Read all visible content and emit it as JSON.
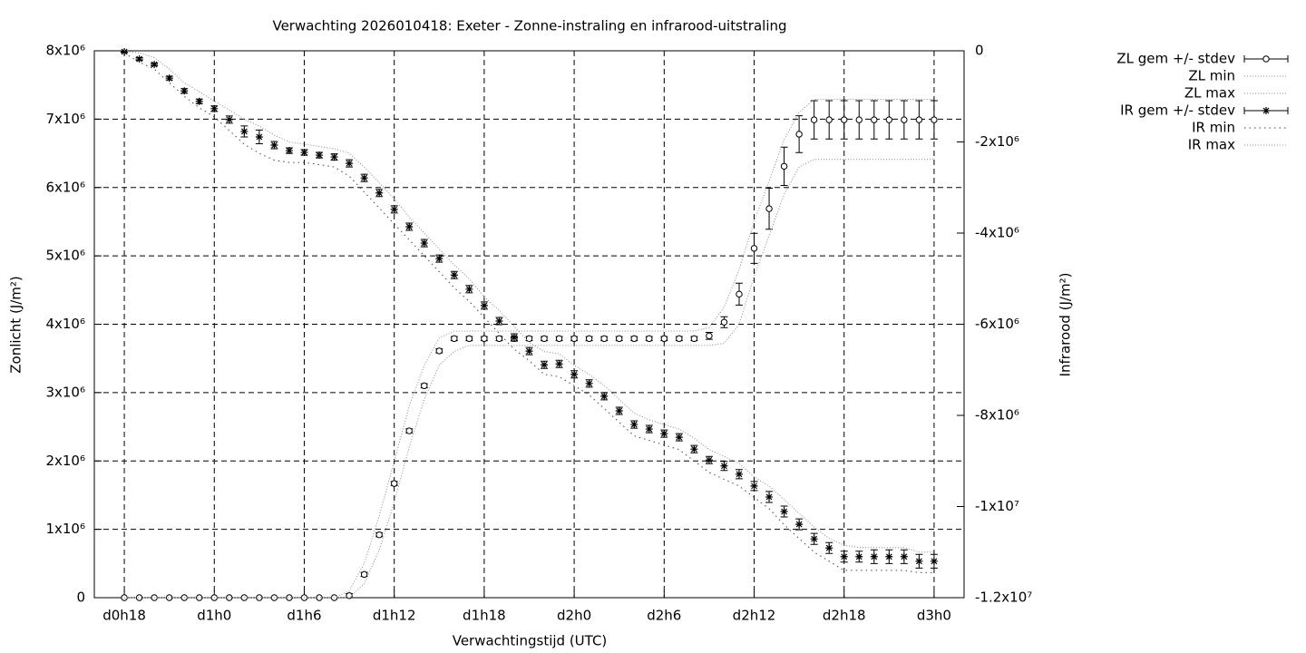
{
  "chart_data": {
    "type": "errorbar",
    "title": "Verwachting 2026010418: Exeter - Zonne-instraling en infrarood-uitstraling",
    "x_label": "Verwachtingstijd (UTC)",
    "y_label": "Zonlicht (J/m²)",
    "y2_label": "Infrarood (J/m²)",
    "grid": true,
    "legend": "outside-top-right",
    "xlim": [
      16,
      74
    ],
    "xticks": [
      {
        "value": 18,
        "label": "d0h18"
      },
      {
        "value": 24,
        "label": "d1h0"
      },
      {
        "value": 30,
        "label": "d1h6"
      },
      {
        "value": 36,
        "label": "d1h12"
      },
      {
        "value": 42,
        "label": "d1h18"
      },
      {
        "value": 48,
        "label": "d2h0"
      },
      {
        "value": 54,
        "label": "d2h6"
      },
      {
        "value": 60,
        "label": "d2h12"
      },
      {
        "value": 66,
        "label": "d2h18"
      },
      {
        "value": 72,
        "label": "d3h0"
      }
    ],
    "ylim": [
      0,
      8000000.0
    ],
    "yticks": [
      0,
      {
        "value": 1000000.0,
        "label": "1x10⁶"
      },
      {
        "value": 2000000.0,
        "label": "2x10⁶"
      },
      {
        "value": 3000000.0,
        "label": "3x10⁶"
      },
      {
        "value": 4000000.0,
        "label": "4x10⁶"
      },
      {
        "value": 5000000.0,
        "label": "5x10⁶"
      },
      {
        "value": 6000000.0,
        "label": "6x10⁶"
      },
      {
        "value": 7000000.0,
        "label": "7x10⁶"
      },
      {
        "value": 8000000.0,
        "label": "8x10⁶"
      }
    ],
    "y2lim": [
      -12000000.0,
      0
    ],
    "y2ticks": [
      0,
      {
        "value": -2000000.0,
        "label": "-2x10⁶"
      },
      {
        "value": -4000000.0,
        "label": "-4x10⁶"
      },
      {
        "value": -6000000.0,
        "label": "-6x10⁶"
      },
      {
        "value": -8000000.0,
        "label": "-8x10⁶"
      },
      {
        "value": -10000000.0,
        "label": "-1x10⁷"
      },
      {
        "value": -12000000.0,
        "label": "-1.2x10⁷"
      }
    ],
    "x": [
      18,
      19,
      20,
      21,
      22,
      23,
      24,
      25,
      26,
      27,
      28,
      29,
      30,
      31,
      32,
      33,
      34,
      35,
      36,
      37,
      38,
      39,
      40,
      41,
      42,
      43,
      44,
      45,
      46,
      47,
      48,
      49,
      50,
      51,
      52,
      53,
      54,
      55,
      56,
      57,
      58,
      59,
      60,
      61,
      62,
      63,
      64,
      65,
      66,
      67,
      68,
      69,
      70,
      71,
      72
    ],
    "series": [
      {
        "name": "ZL gem +/- stdev",
        "color": "#000000",
        "style": "errorbar-circle",
        "values": [
          0,
          0,
          0,
          0,
          0,
          0,
          0,
          0,
          0,
          0,
          0,
          0,
          0,
          0,
          0,
          30000.0,
          340000.0,
          920000.0,
          1670000.0,
          2440000.0,
          3100000.0,
          3610000.0,
          3790000.0,
          3790000.0,
          3790000.0,
          3790000.0,
          3790000.0,
          3790000.0,
          3790000.0,
          3790000.0,
          3790000.0,
          3790000.0,
          3790000.0,
          3790000.0,
          3790000.0,
          3790000.0,
          3790000.0,
          3790000.0,
          3790000.0,
          3830000.0,
          4030000.0,
          4440000.0,
          5110000.0,
          5690000.0,
          6310000.0,
          6780000.0,
          6990000.0,
          6990000.0,
          6990000.0,
          6990000.0,
          6990000.0,
          6990000.0,
          6990000.0,
          6990000.0,
          6990000.0
        ],
        "errors": [
          0,
          0,
          0,
          0,
          0,
          0,
          0,
          0,
          0,
          0,
          0,
          0,
          0,
          0,
          0,
          30000.0,
          30000.0,
          30000.0,
          30000.0,
          30000.0,
          30000.0,
          30000.0,
          30000.0,
          30000.0,
          30000.0,
          30000.0,
          30000.0,
          30000.0,
          30000.0,
          30000.0,
          30000.0,
          30000.0,
          30000.0,
          30000.0,
          30000.0,
          30000.0,
          30000.0,
          30000.0,
          30000.0,
          50000.0,
          80000.0,
          160000.0,
          220000.0,
          300000.0,
          280000.0,
          270000.0,
          280000.0,
          280000.0,
          280000.0,
          280000.0,
          280000.0,
          280000.0,
          280000.0,
          280000.0,
          280000.0
        ]
      },
      {
        "name": "ZL min",
        "color": "#888888",
        "style": "dotted",
        "values": [
          0,
          0,
          0,
          0,
          0,
          0,
          0,
          0,
          0,
          0,
          0,
          0,
          0,
          0,
          0,
          0,
          200000.0,
          700000.0,
          1400000.0,
          2200000.0,
          2900000.0,
          3400000.0,
          3600000.0,
          3690000.0,
          3690000.0,
          3690000.0,
          3690000.0,
          3690000.0,
          3690000.0,
          3690000.0,
          3690000.0,
          3690000.0,
          3690000.0,
          3690000.0,
          3690000.0,
          3690000.0,
          3690000.0,
          3690000.0,
          3690000.0,
          3690000.0,
          3720000.0,
          4000000.0,
          4700000.0,
          5300000.0,
          5900000.0,
          6300000.0,
          6410000.0,
          6410000.0,
          6410000.0,
          6410000.0,
          6410000.0,
          6410000.0,
          6410000.0,
          6410000.0,
          6410000.0
        ]
      },
      {
        "name": "ZL max",
        "color": "#888888",
        "style": "dotted",
        "values": [
          0,
          0,
          0,
          0,
          0,
          0,
          0,
          0,
          0,
          0,
          0,
          0,
          0,
          0,
          0,
          100000.0,
          500000.0,
          1200000.0,
          2000000.0,
          2800000.0,
          3400000.0,
          3800000.0,
          3900000.0,
          3900000.0,
          3900000.0,
          3900000.0,
          3900000.0,
          3900000.0,
          3900000.0,
          3900000.0,
          3900000.0,
          3900000.0,
          3900000.0,
          3900000.0,
          3900000.0,
          3900000.0,
          3900000.0,
          3900000.0,
          3900000.0,
          3950000.0,
          4250000.0,
          4800000.0,
          5500000.0,
          6100000.0,
          6700000.0,
          7100000.0,
          7290000.0,
          7290000.0,
          7290000.0,
          7290000.0,
          7290000.0,
          7290000.0,
          7290000.0,
          7290000.0,
          7290000.0
        ]
      },
      {
        "name": "IR gem +/- stdev",
        "color": "#000000",
        "style": "errorbar-star",
        "axis": "y2",
        "values": [
          -20000.0,
          -180000.0,
          -300000.0,
          -600000.0,
          -880000.0,
          -1110000.0,
          -1270000.0,
          -1510000.0,
          -1770000.0,
          -1890000.0,
          -2070000.0,
          -2190000.0,
          -2230000.0,
          -2290000.0,
          -2330000.0,
          -2470000.0,
          -2790000.0,
          -3120000.0,
          -3480000.0,
          -3860000.0,
          -4220000.0,
          -4560000.0,
          -4920000.0,
          -5230000.0,
          -5590000.0,
          -5930000.0,
          -6290000.0,
          -6590000.0,
          -6890000.0,
          -6870000.0,
          -7100000.0,
          -7300000.0,
          -7580000.0,
          -7900000.0,
          -8200000.0,
          -8300000.0,
          -8400000.0,
          -8480000.0,
          -8740000.0,
          -8980000.0,
          -9110000.0,
          -9290000.0,
          -9550000.0,
          -9790000.0,
          -10110000.0,
          -10390000.0,
          -10710000.0,
          -10910000.0,
          -11100000.0,
          -11100000.0,
          -11100000.0,
          -11100000.0,
          -11100000.0,
          -11200000.0,
          -11200000.0
        ],
        "errors": [
          20000.0,
          30000.0,
          30000.0,
          40000.0,
          50000.0,
          50000.0,
          60000.0,
          80000.0,
          120000.0,
          150000.0,
          80000.0,
          60000.0,
          60000.0,
          60000.0,
          70000.0,
          80000.0,
          80000.0,
          80000.0,
          80000.0,
          80000.0,
          80000.0,
          80000.0,
          80000.0,
          80000.0,
          80000.0,
          80000.0,
          80000.0,
          80000.0,
          80000.0,
          80000.0,
          80000.0,
          80000.0,
          80000.0,
          80000.0,
          80000.0,
          80000.0,
          80000.0,
          80000.0,
          80000.0,
          80000.0,
          100000.0,
          100000.0,
          100000.0,
          120000.0,
          120000.0,
          120000.0,
          120000.0,
          120000.0,
          120000.0,
          120000.0,
          150000.0,
          150000.0,
          150000.0,
          150000.0,
          150000.0
        ]
      },
      {
        "name": "IR min",
        "color": "#444444",
        "style": "dotted",
        "axis": "y2",
        "values": [
          -50000.0,
          -250000.0,
          -400000.0,
          -700000.0,
          -1000000.0,
          -1250000.0,
          -1450000.0,
          -1750000.0,
          -2050000.0,
          -2250000.0,
          -2400000.0,
          -2450000.0,
          -2450000.0,
          -2500000.0,
          -2550000.0,
          -2750000.0,
          -3100000.0,
          -3450000.0,
          -3800000.0,
          -4150000.0,
          -4500000.0,
          -4850000.0,
          -5200000.0,
          -5500000.0,
          -5850000.0,
          -6200000.0,
          -6550000.0,
          -6800000.0,
          -7100000.0,
          -7150000.0,
          -7350000.0,
          -7550000.0,
          -7850000.0,
          -8150000.0,
          -8450000.0,
          -8550000.0,
          -8650000.0,
          -8750000.0,
          -9000000.0,
          -9250000.0,
          -9400000.0,
          -9550000.0,
          -9800000.0,
          -10050000.0,
          -10400000.0,
          -10700000.0,
          -11000000.0,
          -11200000.0,
          -11400000.0,
          -11400000.0,
          -11400000.0,
          -11400000.0,
          -11400000.0,
          -11450000.0,
          -11450000.0
        ]
      },
      {
        "name": "IR max",
        "color": "#888888",
        "style": "dotted",
        "axis": "y2",
        "values": [
          0,
          -50000.0,
          -150000.0,
          -400000.0,
          -700000.0,
          -900000.0,
          -1100000.0,
          -1300000.0,
          -1500000.0,
          -1650000.0,
          -1850000.0,
          -2000000.0,
          -2050000.0,
          -2100000.0,
          -2150000.0,
          -2250000.0,
          -2550000.0,
          -2900000.0,
          -3250000.0,
          -3650000.0,
          -4000000.0,
          -4350000.0,
          -4700000.0,
          -5000000.0,
          -5400000.0,
          -5700000.0,
          -6050000.0,
          -6400000.0,
          -6600000.0,
          -6650000.0,
          -6900000.0,
          -7100000.0,
          -7350000.0,
          -7650000.0,
          -7950000.0,
          -8100000.0,
          -8200000.0,
          -8300000.0,
          -8500000.0,
          -8750000.0,
          -8900000.0,
          -9050000.0,
          -9350000.0,
          -9550000.0,
          -9850000.0,
          -10150000.0,
          -10450000.0,
          -10700000.0,
          -10850000.0,
          -10900000.0,
          -10900000.0,
          -10900000.0,
          -10900000.0,
          -11000000.0,
          -11000000.0
        ]
      }
    ]
  }
}
